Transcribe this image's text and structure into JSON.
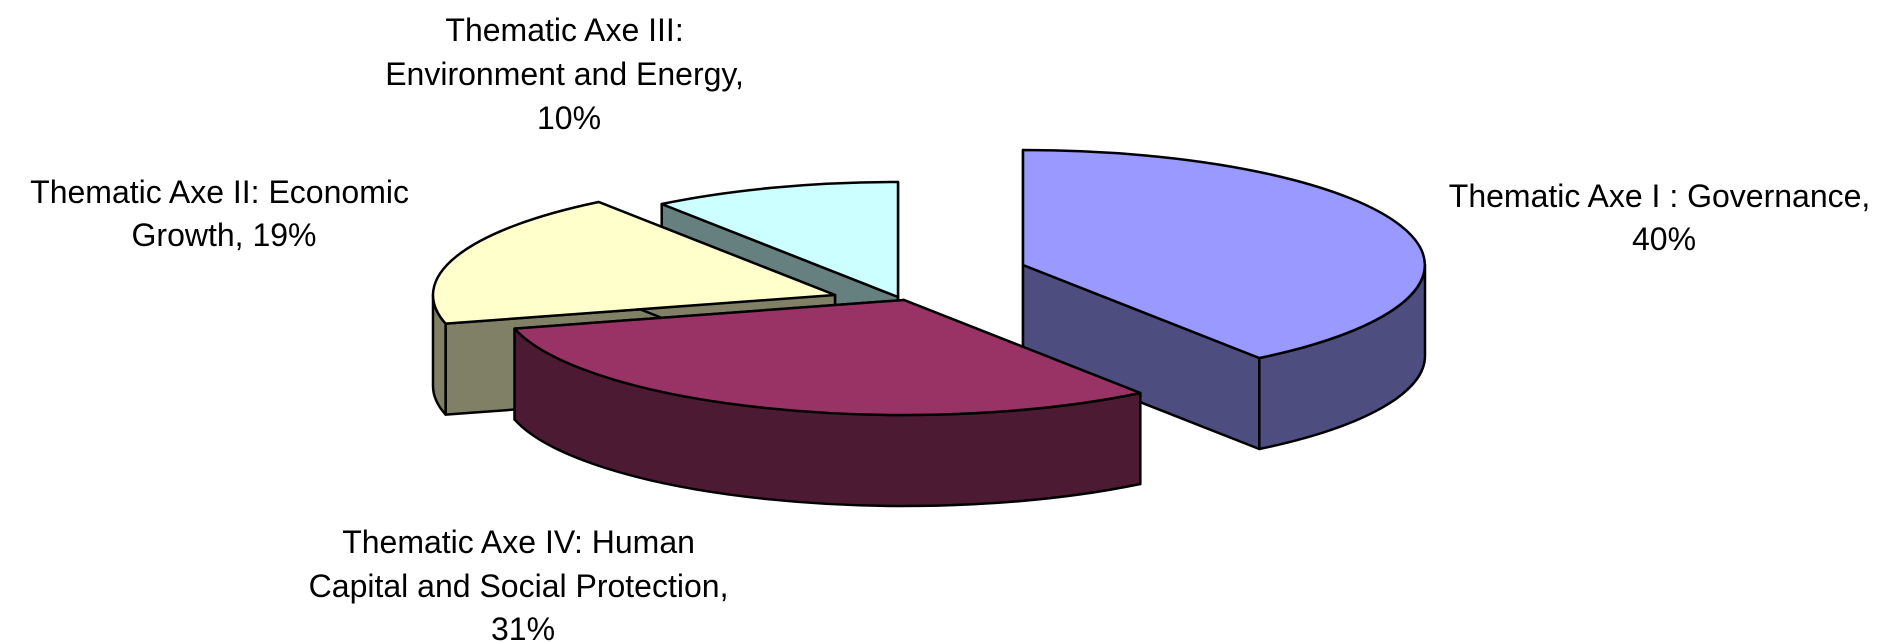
{
  "chart_data": {
    "type": "pie",
    "title": "",
    "exploded": true,
    "three_d": true,
    "legend": "none",
    "slices": [
      {
        "label": "Thematic Axe I : Governance",
        "value": 40,
        "label_lines": [
          "Thematic Axe I : Governance,",
          "40%"
        ],
        "top_color": "#9999FF",
        "side_color": "#4D4D80"
      },
      {
        "label": "Thematic Axe II: Economic Growth",
        "value": 19,
        "label_lines": [
          "Thematic Axe II: Economic",
          "Growth, 19%"
        ],
        "top_color": "#FFFFCC",
        "side_color": "#808066"
      },
      {
        "label": "Thematic Axe III: Environment and Energy",
        "value": 10,
        "label_lines": [
          "Thematic Axe III:",
          "Environment and Energy,",
          "10%"
        ],
        "top_color": "#CCFFFF",
        "side_color": "#668080"
      },
      {
        "label": "Thematic Axe IV: Human Capital and Social Protection",
        "value": 31,
        "label_lines": [
          "Thematic Axe IV: Human",
          "Capital and Social Protection,",
          "31%"
        ],
        "top_color": "#993366",
        "side_color": "#4D1A33"
      }
    ]
  }
}
